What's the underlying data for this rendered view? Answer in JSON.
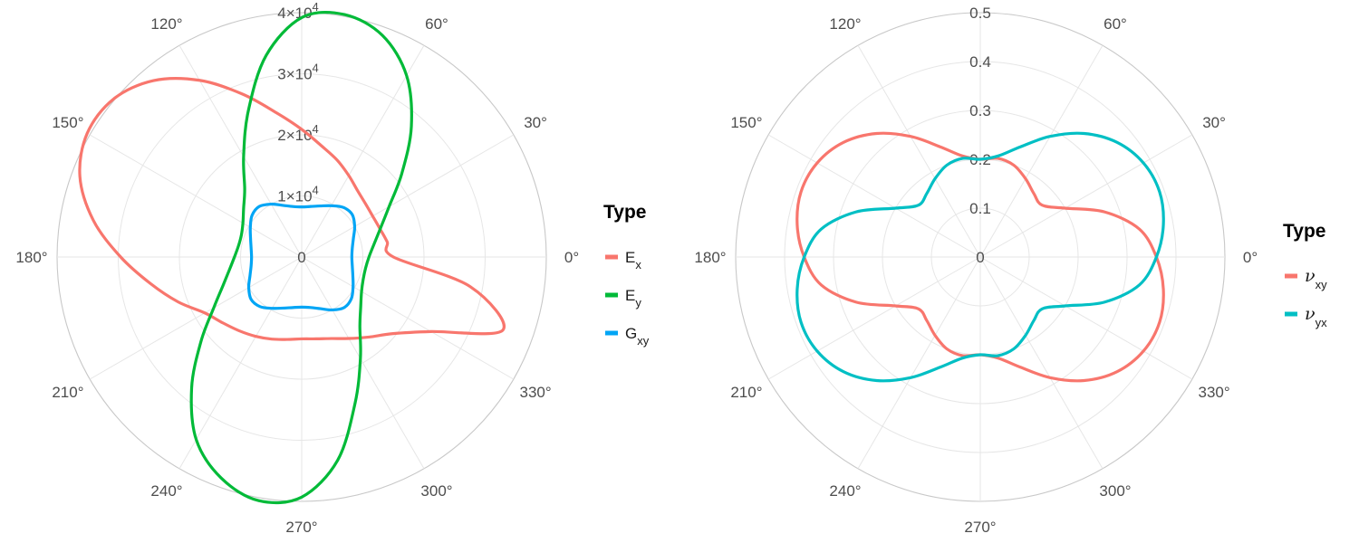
{
  "chart_data": [
    {
      "type": "line",
      "coord": "polar",
      "angle_unit": "degrees",
      "angle_ticks": [
        0,
        30,
        60,
        90,
        120,
        150,
        180,
        210,
        240,
        270,
        300,
        330
      ],
      "angle_labels": [
        "0°",
        "30°",
        "60°",
        "",
        "120°",
        "150°",
        "180°",
        "210°",
        "240°",
        "270°",
        "300°",
        "330°"
      ],
      "r_ticks": [
        0,
        10000,
        20000,
        30000,
        40000
      ],
      "r_tick_labels": [
        {
          "mantissa": "0",
          "exponent": ""
        },
        {
          "mantissa": "1×10",
          "exponent": "4"
        },
        {
          "mantissa": "2×10",
          "exponent": "4"
        },
        {
          "mantissa": "3×10",
          "exponent": "4"
        },
        {
          "mantissa": "4×10",
          "exponent": "4"
        }
      ],
      "rlim": [
        0,
        40000
      ],
      "grid": true,
      "legend": {
        "title": "Type",
        "position": "right"
      },
      "series": [
        {
          "key": "Ex",
          "label_main": "E",
          "label_sub": "x",
          "color": "#F8766D",
          "theta": [
            0,
            10,
            20,
            30,
            40,
            50,
            60,
            70,
            80,
            90,
            100,
            110,
            120,
            130,
            140,
            150,
            160,
            170,
            180,
            190,
            200,
            210,
            220,
            230,
            240,
            250,
            260,
            270,
            280,
            290,
            300,
            310,
            320,
            330,
            340,
            350
          ],
          "r": [
            15000,
            14200,
            13600,
            13400,
            13600,
            14200,
            15400,
            16900,
            18500,
            20900,
            24000,
            28400,
            33400,
            37700,
            40200,
            40500,
            38600,
            34600,
            29600,
            25100,
            21500,
            18300,
            16800,
            15800,
            15000,
            14300,
            13700,
            13400,
            13600,
            14200,
            15400,
            17100,
            19500,
            24400,
            35000,
            28000
          ]
        },
        {
          "key": "Ey",
          "label_main": "E",
          "label_sub": "y",
          "color": "#00BA38",
          "theta": [
            0,
            10,
            20,
            30,
            40,
            50,
            60,
            70,
            80,
            90,
            100,
            110,
            120,
            130,
            140,
            150,
            160,
            170,
            180,
            190,
            200,
            210,
            220,
            230,
            240,
            250,
            260,
            270,
            280,
            290,
            300,
            310,
            320,
            330,
            340,
            350
          ],
          "r": [
            11000,
            12000,
            13700,
            16500,
            21400,
            27900,
            34300,
            38600,
            40300,
            39200,
            33500,
            25500,
            19000,
            14500,
            12400,
            11100,
            10500,
            10500,
            11000,
            12000,
            13700,
            16600,
            21500,
            28000,
            34500,
            38500,
            40500,
            39300,
            33800,
            25500,
            19200,
            14800,
            12600,
            11300,
            10700,
            10600
          ]
        },
        {
          "key": "Gxy",
          "label_main": "G",
          "label_sub": "xy",
          "color": "#00A5F5",
          "theta": [
            0,
            10,
            20,
            30,
            40,
            50,
            60,
            70,
            80,
            90,
            100,
            110,
            120,
            130,
            140,
            150,
            160,
            170,
            180,
            190,
            200,
            210,
            220,
            230,
            240,
            250,
            260,
            270,
            280,
            290,
            300,
            310,
            320,
            330,
            340,
            350
          ],
          "r": [
            8200,
            8400,
            9000,
            10000,
            10800,
            10600,
            9700,
            8900,
            8400,
            8200,
            8400,
            9000,
            10000,
            10800,
            10600,
            9700,
            8900,
            8400,
            8200,
            8400,
            9000,
            10000,
            10800,
            10600,
            9700,
            8900,
            8400,
            8200,
            8400,
            9000,
            10000,
            10800,
            10600,
            9700,
            8900,
            8400
          ]
        }
      ]
    },
    {
      "type": "line",
      "coord": "polar",
      "angle_unit": "degrees",
      "angle_ticks": [
        0,
        30,
        60,
        90,
        120,
        150,
        180,
        210,
        240,
        270,
        300,
        330
      ],
      "angle_labels": [
        "0°",
        "30°",
        "60°",
        "",
        "120°",
        "150°",
        "180°",
        "210°",
        "240°",
        "270°",
        "300°",
        "330°"
      ],
      "r_ticks": [
        0,
        0.1,
        0.2,
        0.3,
        0.4,
        0.5
      ],
      "r_tick_labels": [
        {
          "mantissa": "0",
          "exponent": ""
        },
        {
          "mantissa": "0.1",
          "exponent": ""
        },
        {
          "mantissa": "0.2",
          "exponent": ""
        },
        {
          "mantissa": "0.3",
          "exponent": ""
        },
        {
          "mantissa": "0.4",
          "exponent": ""
        },
        {
          "mantissa": "0.5",
          "exponent": ""
        }
      ],
      "rlim": [
        0,
        0.5
      ],
      "grid": true,
      "legend": {
        "title": "Type",
        "position": "right"
      },
      "series": [
        {
          "key": "nuxy",
          "label_main": "ν",
          "label_sub": "xy",
          "color": "#F8766D",
          "theta": [
            0,
            10,
            20,
            30,
            40,
            50,
            60,
            70,
            80,
            90,
            100,
            110,
            120,
            130,
            140,
            150,
            160,
            170,
            180,
            190,
            200,
            210,
            220,
            230,
            240,
            250,
            260,
            270,
            280,
            290,
            300,
            310,
            320,
            330,
            340,
            350
          ],
          "r": [
            0.36,
            0.33,
            0.27,
            0.2,
            0.165,
            0.17,
            0.185,
            0.2,
            0.205,
            0.2,
            0.21,
            0.24,
            0.285,
            0.33,
            0.365,
            0.385,
            0.39,
            0.38,
            0.36,
            0.33,
            0.27,
            0.2,
            0.165,
            0.17,
            0.185,
            0.2,
            0.205,
            0.2,
            0.21,
            0.24,
            0.285,
            0.33,
            0.365,
            0.385,
            0.39,
            0.38
          ]
        },
        {
          "key": "nuyx",
          "label_main": "ν",
          "label_sub": "yx",
          "color": "#00BFC4",
          "theta": [
            0,
            10,
            20,
            30,
            40,
            50,
            60,
            70,
            80,
            90,
            100,
            110,
            120,
            130,
            140,
            150,
            160,
            170,
            180,
            190,
            200,
            210,
            220,
            230,
            240,
            250,
            260,
            270,
            280,
            290,
            300,
            310,
            320,
            330,
            340,
            350
          ],
          "r": [
            0.36,
            0.38,
            0.39,
            0.385,
            0.365,
            0.33,
            0.285,
            0.24,
            0.21,
            0.2,
            0.205,
            0.2,
            0.185,
            0.17,
            0.165,
            0.2,
            0.27,
            0.33,
            0.36,
            0.38,
            0.39,
            0.385,
            0.365,
            0.33,
            0.285,
            0.24,
            0.21,
            0.2,
            0.205,
            0.2,
            0.185,
            0.17,
            0.165,
            0.2,
            0.27,
            0.33
          ]
        }
      ]
    }
  ]
}
